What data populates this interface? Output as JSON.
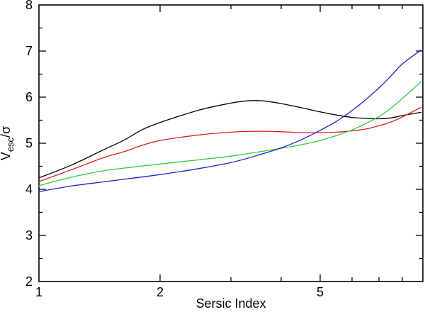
{
  "chart_data": {
    "type": "line",
    "title": "",
    "xlabel": "Sersic Index",
    "ylabel": "V_esc/sigma",
    "ylabel_parts": {
      "base": "V",
      "sub": "esc",
      "suffix": "/σ"
    },
    "x_scale": "log",
    "xlim": [
      1,
      9
    ],
    "ylim": [
      2,
      8
    ],
    "grid": false,
    "legend": "none",
    "x_labeled_ticks": [
      {
        "value": 1,
        "label": "1"
      },
      {
        "value": 2,
        "label": "2"
      },
      {
        "value": 5,
        "label": "5"
      }
    ],
    "x_all_ticks": [
      2,
      3,
      4,
      5,
      6,
      7,
      8
    ],
    "x_major_ticks": [
      2,
      5
    ],
    "y_major_ticks": [
      {
        "value": 2,
        "label": "2"
      },
      {
        "value": 3,
        "label": "3"
      },
      {
        "value": 4,
        "label": "4"
      },
      {
        "value": 5,
        "label": "5"
      },
      {
        "value": 6,
        "label": "6"
      },
      {
        "value": 7,
        "label": "7"
      },
      {
        "value": 8,
        "label": "8"
      }
    ],
    "y_minor_ticks": [
      2.5,
      3.5,
      4.5,
      5.5,
      6.5,
      7.5
    ],
    "frame_color": "#000000",
    "series": [
      {
        "name": "black-curve",
        "color": "#000000",
        "points": [
          [
            1.0,
            4.25
          ],
          [
            1.2,
            4.52
          ],
          [
            1.44,
            4.85
          ],
          [
            1.63,
            5.07
          ],
          [
            1.8,
            5.29
          ],
          [
            2.0,
            5.45
          ],
          [
            2.5,
            5.72
          ],
          [
            3.0,
            5.87
          ],
          [
            3.3,
            5.92
          ],
          [
            3.6,
            5.92
          ],
          [
            4.0,
            5.86
          ],
          [
            4.5,
            5.77
          ],
          [
            5.0,
            5.68
          ],
          [
            5.5,
            5.61
          ],
          [
            6.0,
            5.56
          ],
          [
            6.5,
            5.54
          ],
          [
            7.0,
            5.53
          ],
          [
            7.5,
            5.55
          ],
          [
            8.0,
            5.6
          ],
          [
            8.9,
            5.67
          ]
        ]
      },
      {
        "name": "red-curve",
        "color": "#dd2020",
        "points": [
          [
            1.0,
            4.17
          ],
          [
            1.2,
            4.42
          ],
          [
            1.44,
            4.68
          ],
          [
            1.63,
            4.82
          ],
          [
            1.8,
            4.95
          ],
          [
            2.0,
            5.06
          ],
          [
            2.5,
            5.18
          ],
          [
            3.0,
            5.24
          ],
          [
            3.5,
            5.26
          ],
          [
            4.0,
            5.25
          ],
          [
            4.5,
            5.23
          ],
          [
            5.0,
            5.23
          ],
          [
            5.5,
            5.24
          ],
          [
            6.0,
            5.27
          ],
          [
            6.5,
            5.31
          ],
          [
            7.0,
            5.38
          ],
          [
            7.5,
            5.46
          ],
          [
            8.0,
            5.57
          ],
          [
            8.9,
            5.78
          ]
        ]
      },
      {
        "name": "green-curve",
        "color": "#30cc3c",
        "points": [
          [
            1.0,
            4.08
          ],
          [
            1.2,
            4.26
          ],
          [
            1.44,
            4.4
          ],
          [
            1.7,
            4.48
          ],
          [
            2.0,
            4.55
          ],
          [
            2.5,
            4.64
          ],
          [
            3.0,
            4.72
          ],
          [
            3.5,
            4.81
          ],
          [
            4.0,
            4.89
          ],
          [
            4.5,
            4.97
          ],
          [
            5.0,
            5.06
          ],
          [
            5.5,
            5.17
          ],
          [
            6.0,
            5.29
          ],
          [
            6.5,
            5.43
          ],
          [
            7.0,
            5.58
          ],
          [
            7.5,
            5.76
          ],
          [
            8.0,
            5.97
          ],
          [
            8.9,
            6.33
          ]
        ]
      },
      {
        "name": "blue-curve",
        "color": "#2020cc",
        "points": [
          [
            1.0,
            3.95
          ],
          [
            1.2,
            4.07
          ],
          [
            1.44,
            4.16
          ],
          [
            1.7,
            4.24
          ],
          [
            2.0,
            4.32
          ],
          [
            2.5,
            4.45
          ],
          [
            3.0,
            4.58
          ],
          [
            3.5,
            4.74
          ],
          [
            4.0,
            4.9
          ],
          [
            4.5,
            5.08
          ],
          [
            5.0,
            5.28
          ],
          [
            5.5,
            5.48
          ],
          [
            6.0,
            5.71
          ],
          [
            6.5,
            5.95
          ],
          [
            7.0,
            6.2
          ],
          [
            7.5,
            6.46
          ],
          [
            8.0,
            6.72
          ],
          [
            8.9,
            7.02
          ]
        ]
      }
    ]
  }
}
